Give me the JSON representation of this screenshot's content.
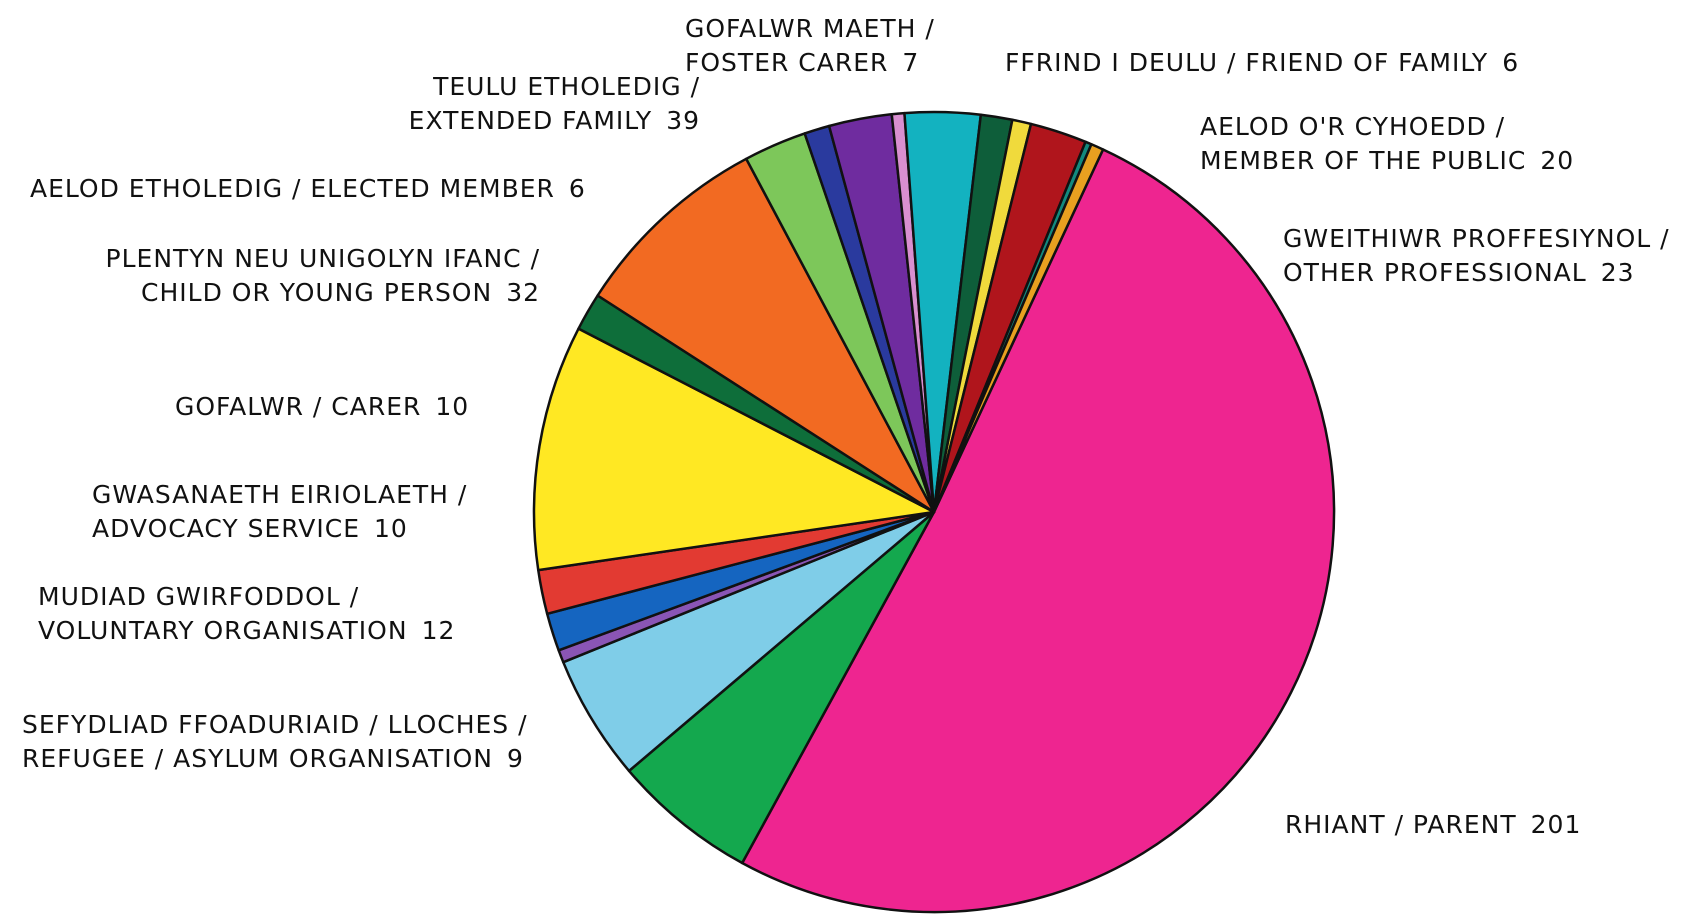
{
  "chart_data": {
    "type": "pie",
    "title": "",
    "slices": [
      {
        "label": "RHIANT / PARENT",
        "value": 201,
        "color": "#EE2590"
      },
      {
        "label": "GWEITHIWR PROFFESIYNOL / OTHER PROFESSIONAL",
        "value": 23,
        "color": "#14A84E"
      },
      {
        "label": "AELOD O'R CYHOEDD / MEMBER OF THE PUBLIC",
        "value": 20,
        "color": "#7FCDE8"
      },
      {
        "label": "",
        "value": 2,
        "color": "#8A55B5"
      },
      {
        "label": "FFRIND I DEULU / FRIEND OF FAMILY",
        "value": 6,
        "color": "#1565C0"
      },
      {
        "label": "GOFALWR MAETH / FOSTER CARER",
        "value": 7,
        "color": "#E23A32"
      },
      {
        "label": "TEULU ETHOLEDIG / EXTENDED FAMILY",
        "value": 39,
        "color": "#FFE823"
      },
      {
        "label": "AELOD ETHOLEDIG / ELECTED MEMBER",
        "value": 6,
        "color": "#0E6E3A"
      },
      {
        "label": "PLENTYN NEU UNIGOLYN IFANC / CHILD OR YOUNG PERSON",
        "value": 32,
        "color": "#F26A22"
      },
      {
        "label": "GOFALWR / CARER",
        "value": 10,
        "color": "#7DC75A"
      },
      {
        "label": "",
        "value": 4,
        "color": "#2A3A9E"
      },
      {
        "label": "GWASANAETH EIRIOLAETH / ADVOCACY SERVICE",
        "value": 10,
        "color": "#6F2C9F"
      },
      {
        "label": "",
        "value": 2,
        "color": "#D98FD0"
      },
      {
        "label": "MUDIAD GWIRFODDOL / VOLUNTARY ORGANISATION",
        "value": 12,
        "color": "#13B2C0"
      },
      {
        "label": "",
        "value": 5,
        "color": "#0E5E3A"
      },
      {
        "label": "",
        "value": 3,
        "color": "#F0DA3C"
      },
      {
        "label": "SEFYDLIAD FFOADURIAID / LLOCHES / REFUGEE / ASYLUM ORGANISATION",
        "value": 9,
        "color": "#B0151C"
      },
      {
        "label": "",
        "value": 1,
        "color": "#138A7E"
      },
      {
        "label": "",
        "value": 2,
        "color": "#E8A020"
      }
    ]
  },
  "labels": {
    "foster_carer": {
      "line1": "GOFALWR MAETH /",
      "line2": "FOSTER CARER",
      "value": "7"
    },
    "friend_of_family": {
      "line1": "FFRIND I DEULU / FRIEND OF FAMILY",
      "value": "6"
    },
    "extended_family": {
      "line1": "TEULU ETHOLEDIG /",
      "line2": "EXTENDED FAMILY",
      "value": "39"
    },
    "member_of_public": {
      "line1": "AELOD O'R CYHOEDD /",
      "line2": "MEMBER OF THE PUBLIC",
      "value": "20"
    },
    "elected_member": {
      "line1": "AELOD ETHOLEDIG / ELECTED MEMBER",
      "value": "6"
    },
    "other_professional": {
      "line1": "GWEITHIWR PROFFESIYNOL /",
      "line2": "OTHER PROFESSIONAL",
      "value": "23"
    },
    "child_young_person": {
      "line1": "PLENTYN NEU UNIGOLYN IFANC /",
      "line2": "CHILD OR YOUNG PERSON",
      "value": "32"
    },
    "carer": {
      "line1": "GOFALWR / CARER",
      "value": "10"
    },
    "advocacy_service": {
      "line1": "GWASANAETH EIRIOLAETH /",
      "line2": "ADVOCACY SERVICE",
      "value": "10"
    },
    "voluntary_org": {
      "line1": "MUDIAD GWIRFODDOL /",
      "line2": "VOLUNTARY ORGANISATION",
      "value": "12"
    },
    "refugee_org": {
      "line1": "SEFYDLIAD FFOADURIAID / LLOCHES /",
      "line2": "REFUGEE / ASYLUM ORGANISATION",
      "value": "9"
    },
    "parent": {
      "line1": "RHIANT / PARENT",
      "value": "201"
    }
  }
}
